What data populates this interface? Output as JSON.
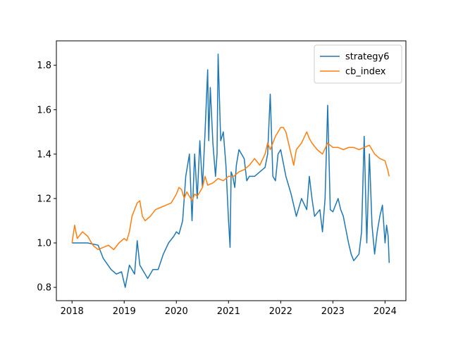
{
  "chart_data": {
    "type": "line",
    "title": "",
    "xlabel": "",
    "ylabel": "",
    "xlim": [
      2017.7,
      2024.4
    ],
    "ylim": [
      0.74,
      1.91
    ],
    "xticks": [
      2018,
      2019,
      2020,
      2021,
      2022,
      2023,
      2024
    ],
    "xtick_labels": [
      "2018",
      "2019",
      "2020",
      "2021",
      "2022",
      "2023",
      "2024"
    ],
    "yticks": [
      0.8,
      1.0,
      1.2,
      1.4,
      1.6,
      1.8
    ],
    "ytick_labels": [
      "0.8",
      "1.0",
      "1.2",
      "1.4",
      "1.6",
      "1.8"
    ],
    "grid": false,
    "legend_position": "top-right",
    "series": [
      {
        "name": "strategy6",
        "color": "#1f77b4",
        "x": [
          2018.0,
          2018.3,
          2018.5,
          2018.6,
          2018.75,
          2018.85,
          2018.95,
          2019.02,
          2019.1,
          2019.2,
          2019.25,
          2019.3,
          2019.35,
          2019.45,
          2019.55,
          2019.65,
          2019.75,
          2019.85,
          2019.95,
          2020.0,
          2020.05,
          2020.12,
          2020.18,
          2020.25,
          2020.3,
          2020.35,
          2020.4,
          2020.45,
          2020.5,
          2020.55,
          2020.6,
          2020.62,
          2020.65,
          2020.7,
          2020.75,
          2020.78,
          2020.8,
          2020.85,
          2020.9,
          2020.95,
          2021.0,
          2021.03,
          2021.05,
          2021.08,
          2021.12,
          2021.15,
          2021.2,
          2021.3,
          2021.35,
          2021.4,
          2021.5,
          2021.6,
          2021.7,
          2021.75,
          2021.8,
          2021.85,
          2021.9,
          2021.95,
          2022.0,
          2022.1,
          2022.2,
          2022.3,
          2022.4,
          2022.5,
          2022.55,
          2022.6,
          2022.65,
          2022.75,
          2022.8,
          2022.85,
          2022.9,
          2022.95,
          2023.0,
          2023.1,
          2023.15,
          2023.2,
          2023.25,
          2023.3,
          2023.35,
          2023.4,
          2023.5,
          2023.55,
          2023.6,
          2023.65,
          2023.7,
          2023.75,
          2023.8,
          2023.85,
          2023.9,
          2023.95,
          2024.0,
          2024.03,
          2024.06,
          2024.08
        ],
        "values": [
          1.0,
          1.0,
          0.99,
          0.93,
          0.88,
          0.86,
          0.87,
          0.8,
          0.9,
          0.86,
          1.01,
          0.9,
          0.88,
          0.84,
          0.88,
          0.88,
          0.95,
          1.0,
          1.03,
          1.05,
          1.04,
          1.1,
          1.3,
          1.4,
          1.1,
          1.4,
          1.2,
          1.46,
          1.25,
          1.5,
          1.78,
          1.46,
          1.7,
          1.45,
          1.3,
          1.4,
          1.85,
          1.46,
          1.5,
          1.35,
          1.1,
          0.98,
          1.32,
          1.3,
          1.25,
          1.35,
          1.42,
          1.38,
          1.28,
          1.3,
          1.3,
          1.32,
          1.34,
          1.4,
          1.67,
          1.3,
          1.28,
          1.4,
          1.42,
          1.3,
          1.22,
          1.12,
          1.2,
          1.15,
          1.3,
          1.2,
          1.12,
          1.15,
          1.05,
          1.2,
          1.62,
          1.15,
          1.14,
          1.2,
          1.15,
          1.12,
          1.06,
          1.0,
          0.95,
          0.92,
          0.95,
          1.05,
          1.48,
          1.0,
          1.4,
          1.08,
          0.95,
          1.05,
          1.12,
          1.17,
          1.0,
          1.08,
          1.03,
          0.91
        ]
      },
      {
        "name": "cb_index",
        "color": "#ff7f0e",
        "x": [
          2018.0,
          2018.05,
          2018.1,
          2018.2,
          2018.3,
          2018.4,
          2018.5,
          2018.6,
          2018.7,
          2018.8,
          2018.9,
          2019.0,
          2019.05,
          2019.1,
          2019.15,
          2019.2,
          2019.25,
          2019.3,
          2019.35,
          2019.4,
          2019.5,
          2019.6,
          2019.7,
          2019.8,
          2019.9,
          2020.0,
          2020.05,
          2020.1,
          2020.15,
          2020.2,
          2020.3,
          2020.35,
          2020.4,
          2020.5,
          2020.55,
          2020.6,
          2020.7,
          2020.8,
          2020.9,
          2021.0,
          2021.1,
          2021.2,
          2021.3,
          2021.4,
          2021.5,
          2021.6,
          2021.7,
          2021.75,
          2021.8,
          2021.9,
          2022.0,
          2022.05,
          2022.1,
          2022.2,
          2022.25,
          2022.3,
          2022.4,
          2022.5,
          2022.55,
          2022.6,
          2022.7,
          2022.8,
          2022.9,
          2023.0,
          2023.1,
          2023.2,
          2023.3,
          2023.4,
          2023.5,
          2023.6,
          2023.7,
          2023.8,
          2023.9,
          2024.0,
          2024.05,
          2024.08
        ],
        "values": [
          1.0,
          1.08,
          1.02,
          1.05,
          1.03,
          0.99,
          0.97,
          0.98,
          0.99,
          0.97,
          1.0,
          1.02,
          1.01,
          1.05,
          1.12,
          1.15,
          1.18,
          1.19,
          1.12,
          1.1,
          1.12,
          1.15,
          1.16,
          1.17,
          1.18,
          1.22,
          1.25,
          1.24,
          1.2,
          1.23,
          1.19,
          1.22,
          1.21,
          1.25,
          1.3,
          1.26,
          1.27,
          1.29,
          1.28,
          1.3,
          1.3,
          1.32,
          1.33,
          1.35,
          1.38,
          1.35,
          1.4,
          1.45,
          1.42,
          1.48,
          1.52,
          1.52,
          1.5,
          1.4,
          1.35,
          1.42,
          1.45,
          1.5,
          1.47,
          1.45,
          1.42,
          1.4,
          1.45,
          1.43,
          1.43,
          1.42,
          1.43,
          1.43,
          1.42,
          1.43,
          1.44,
          1.4,
          1.38,
          1.37,
          1.33,
          1.3
        ]
      }
    ]
  }
}
